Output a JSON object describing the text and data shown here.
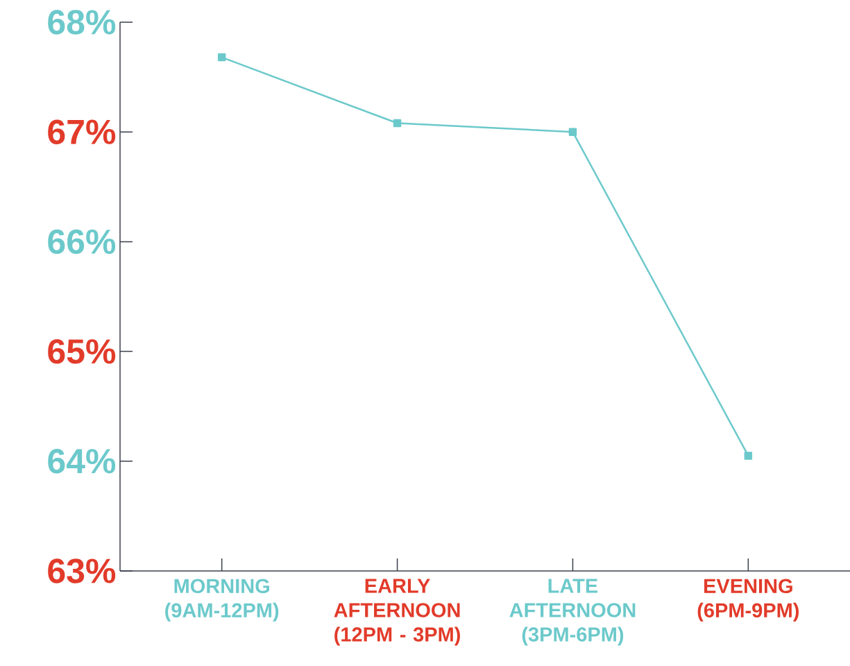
{
  "chart_data": {
    "type": "line",
    "categories": [
      "MORNING (9AM-12PM)",
      "EARLY AFTERNOON (12PM - 3PM)",
      "LATE AFTERNOON (3PM-6PM)",
      "EVENING (6PM-9PM)"
    ],
    "series": [
      {
        "color": "#6cc9cb",
        "values": [
          67.68,
          67.08,
          67.0,
          64.05
        ]
      }
    ],
    "ylim": [
      63,
      68
    ],
    "yticks": [
      {
        "value": 63,
        "label": "63%"
      },
      {
        "value": 64,
        "label": "64%"
      },
      {
        "value": 65,
        "label": "65%"
      },
      {
        "value": 66,
        "label": "66%"
      },
      {
        "value": 67,
        "label": "67%"
      },
      {
        "value": 68,
        "label": "68%"
      }
    ],
    "marker": "square",
    "line_style": "solid"
  }
}
